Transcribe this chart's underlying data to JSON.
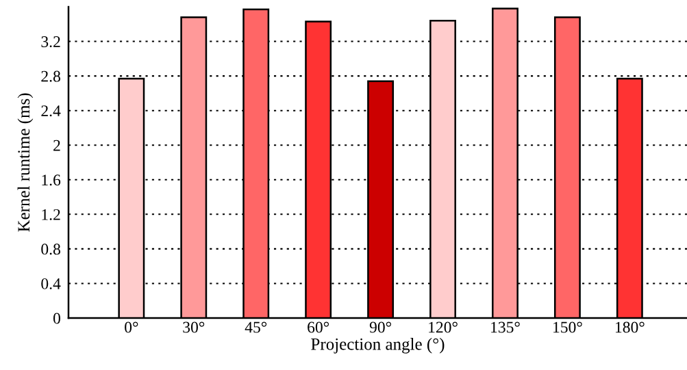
{
  "chart_data": {
    "type": "bar",
    "xlabel": "Projection angle (°)",
    "ylabel": "Kernel runtime (ms)",
    "categories": [
      "0°",
      "30°",
      "45°",
      "60°",
      "90°",
      "120°",
      "135°",
      "150°",
      "180°"
    ],
    "values": [
      2.77,
      3.48,
      3.57,
      3.43,
      2.74,
      3.44,
      3.58,
      3.48,
      2.77
    ],
    "colors": [
      "#ffcccc",
      "#ff9999",
      "#ff6666",
      "#ff3333",
      "#cc0000",
      "#ffcccc",
      "#ff9999",
      "#ff6666",
      "#ff3333"
    ],
    "ylim": [
      0,
      3.6
    ],
    "yticks": [
      0,
      0.4,
      0.8,
      1.2,
      1.6,
      2,
      2.4,
      2.8,
      3.2
    ],
    "grid": "y"
  }
}
